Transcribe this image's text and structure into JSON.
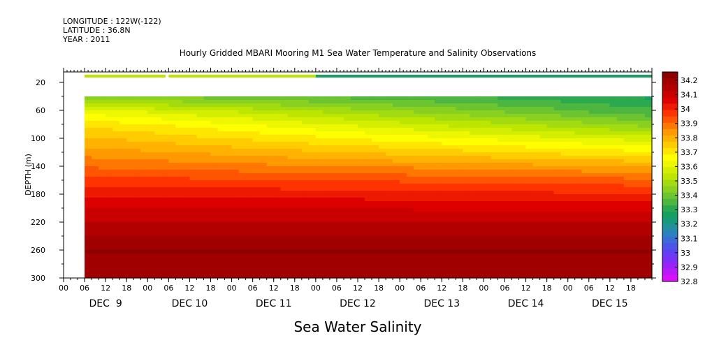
{
  "header": {
    "longitude": "LONGITUDE : 122W(-122)",
    "latitude": "LATITUDE : 36.8N",
    "year": "YEAR : 2011"
  },
  "chart_data": {
    "type": "heatmap",
    "title": "Hourly Gridded MBARI Mooring M1 Sea Water Temperature and Salinity Observations",
    "xlabel": "Sea Water Salinity",
    "ylabel": "DEPTH (m)",
    "y_ticks": [
      20,
      60,
      100,
      140,
      180,
      220,
      260,
      300
    ],
    "y_range": [
      5,
      300
    ],
    "y_inverted": true,
    "x_range_hours": [
      0,
      168
    ],
    "x_hour_ticks": [
      "00",
      "06",
      "12",
      "18",
      "00",
      "06",
      "12",
      "18",
      "00",
      "06",
      "12",
      "18",
      "00",
      "06",
      "12",
      "18",
      "00",
      "06",
      "12",
      "18",
      "00",
      "06",
      "12",
      "18",
      "00",
      "06",
      "12",
      "18"
    ],
    "x_day_labels": [
      "DEC  9",
      "DEC 10",
      "DEC 11",
      "DEC 12",
      "DEC 13",
      "DEC 14",
      "DEC 15"
    ],
    "colorbar": {
      "levels": [
        "34.2",
        "34.1",
        "34",
        "33.9",
        "33.8",
        "33.7",
        "33.6",
        "33.5",
        "33.4",
        "33.3",
        "33.2",
        "33.1",
        "33",
        "32.9",
        "32.8"
      ],
      "range": [
        32.8,
        34.25
      ],
      "colors": [
        "#8b0000",
        "#a00000",
        "#b20000",
        "#c80000",
        "#dc0000",
        "#ee1a00",
        "#ff3300",
        "#ff5500",
        "#ff7700",
        "#ff9900",
        "#ffb300",
        "#ffcc00",
        "#ffe600",
        "#ffff00",
        "#ecf700",
        "#d4ee00",
        "#bce600",
        "#a2dc10",
        "#8ad020",
        "#6cc430",
        "#4cb640",
        "#2ca850",
        "#14a060",
        "#189a7a",
        "#2290a0",
        "#2c80c0",
        "#3c6ad8",
        "#4d55e8",
        "#6040f2",
        "#7a30f6",
        "#9a22f8",
        "#ba18fa",
        "#d810fc"
      ]
    },
    "data_start_hour": 6,
    "surface_sensor": {
      "depth_range": [
        9,
        13
      ],
      "gap_hours": [
        29,
        30
      ],
      "value_before_dec12": 33.52,
      "value_after_dec12": 33.28
    },
    "profile_depths": [
      40,
      60,
      80,
      100,
      120,
      140,
      160,
      180,
      200,
      220,
      240,
      260,
      280,
      300
    ],
    "profile_salinity_dec9": [
      33.45,
      33.62,
      33.72,
      33.78,
      33.84,
      33.9,
      33.97,
      34.03,
      34.08,
      34.13,
      34.17,
      34.21,
      34.19,
      34.18
    ],
    "profile_salinity_dec13": [
      33.28,
      33.34,
      33.45,
      33.58,
      33.7,
      33.82,
      33.92,
      34.0,
      34.07,
      34.13,
      34.17,
      34.21,
      34.19,
      34.18
    ]
  }
}
